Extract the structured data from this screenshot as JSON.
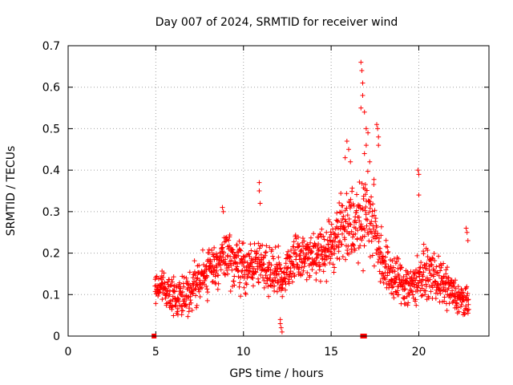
{
  "chart_data": {
    "type": "scatter",
    "title": "Day 007 of 2024, SRMTID for receiver wind",
    "xlabel": "GPS time / hours",
    "ylabel": "SRMTID / TECUs",
    "xlim": [
      0,
      24
    ],
    "ylim": [
      0,
      0.7
    ],
    "x_ticks": [
      "0",
      "5",
      "10",
      "15",
      "20"
    ],
    "x_tick_values": [
      0,
      5,
      10,
      15,
      20
    ],
    "y_ticks": [
      "0",
      "0.1",
      "0.2",
      "0.3",
      "0.4",
      "0.5",
      "0.6",
      "0.7"
    ],
    "y_tick_values": [
      0,
      0.1,
      0.2,
      0.3,
      0.4,
      0.5,
      0.6,
      0.7
    ],
    "grid": true,
    "marker": "plus",
    "series_color": "#ff0000",
    "trend": [
      [
        4.95,
        0.11
      ],
      [
        5.2,
        0.12
      ],
      [
        5.5,
        0.12
      ],
      [
        5.8,
        0.1
      ],
      [
        6.2,
        0.09
      ],
      [
        6.6,
        0.1
      ],
      [
        7.0,
        0.11
      ],
      [
        7.4,
        0.13
      ],
      [
        7.8,
        0.15
      ],
      [
        8.2,
        0.17
      ],
      [
        8.6,
        0.18
      ],
      [
        9.0,
        0.19
      ],
      [
        9.4,
        0.18
      ],
      [
        9.8,
        0.17
      ],
      [
        10.2,
        0.16
      ],
      [
        10.6,
        0.17
      ],
      [
        11.0,
        0.17
      ],
      [
        11.4,
        0.16
      ],
      [
        11.8,
        0.15
      ],
      [
        12.2,
        0.14
      ],
      [
        12.6,
        0.17
      ],
      [
        13.0,
        0.19
      ],
      [
        13.4,
        0.19
      ],
      [
        13.8,
        0.19
      ],
      [
        14.2,
        0.2
      ],
      [
        14.6,
        0.2
      ],
      [
        15.0,
        0.22
      ],
      [
        15.4,
        0.25
      ],
      [
        15.8,
        0.27
      ],
      [
        16.2,
        0.28
      ],
      [
        16.6,
        0.27
      ],
      [
        17.0,
        0.31
      ],
      [
        17.4,
        0.27
      ],
      [
        17.8,
        0.2
      ],
      [
        18.2,
        0.16
      ],
      [
        18.6,
        0.14
      ],
      [
        19.0,
        0.13
      ],
      [
        19.4,
        0.12
      ],
      [
        19.8,
        0.13
      ],
      [
        20.2,
        0.15
      ],
      [
        20.6,
        0.15
      ],
      [
        21.0,
        0.14
      ],
      [
        21.4,
        0.12
      ],
      [
        21.8,
        0.11
      ],
      [
        22.2,
        0.09
      ],
      [
        22.6,
        0.08
      ],
      [
        22.85,
        0.08
      ]
    ],
    "spread": [
      [
        4.95,
        0.03
      ],
      [
        6.0,
        0.04
      ],
      [
        8.0,
        0.05
      ],
      [
        9.0,
        0.06
      ],
      [
        10.5,
        0.05
      ],
      [
        12.0,
        0.05
      ],
      [
        13.5,
        0.05
      ],
      [
        15.0,
        0.06
      ],
      [
        16.0,
        0.08
      ],
      [
        17.0,
        0.1
      ],
      [
        18.0,
        0.06
      ],
      [
        19.5,
        0.05
      ],
      [
        21.0,
        0.05
      ],
      [
        22.85,
        0.03
      ]
    ],
    "outliers": [
      {
        "x": 8.8,
        "y": 0.31
      },
      {
        "x": 8.85,
        "y": 0.3
      },
      {
        "x": 10.9,
        "y": 0.37
      },
      {
        "x": 10.9,
        "y": 0.35
      },
      {
        "x": 10.95,
        "y": 0.32
      },
      {
        "x": 12.1,
        "y": 0.04
      },
      {
        "x": 12.15,
        "y": 0.02
      },
      {
        "x": 12.2,
        "y": 0.01
      },
      {
        "x": 12.1,
        "y": 0.03
      },
      {
        "x": 15.9,
        "y": 0.47
      },
      {
        "x": 16.0,
        "y": 0.45
      },
      {
        "x": 15.8,
        "y": 0.43
      },
      {
        "x": 16.1,
        "y": 0.42
      },
      {
        "x": 16.7,
        "y": 0.66
      },
      {
        "x": 16.75,
        "y": 0.64
      },
      {
        "x": 16.8,
        "y": 0.61
      },
      {
        "x": 16.8,
        "y": 0.58
      },
      {
        "x": 16.7,
        "y": 0.55
      },
      {
        "x": 16.9,
        "y": 0.54
      },
      {
        "x": 17.0,
        "y": 0.5
      },
      {
        "x": 17.1,
        "y": 0.49
      },
      {
        "x": 17.0,
        "y": 0.46
      },
      {
        "x": 16.9,
        "y": 0.44
      },
      {
        "x": 17.2,
        "y": 0.42
      },
      {
        "x": 17.6,
        "y": 0.51
      },
      {
        "x": 17.65,
        "y": 0.5
      },
      {
        "x": 17.7,
        "y": 0.48
      },
      {
        "x": 17.7,
        "y": 0.46
      },
      {
        "x": 19.95,
        "y": 0.4
      },
      {
        "x": 20.0,
        "y": 0.39
      },
      {
        "x": 20.0,
        "y": 0.34
      },
      {
        "x": 22.7,
        "y": 0.26
      },
      {
        "x": 22.75,
        "y": 0.25
      },
      {
        "x": 22.8,
        "y": 0.23
      }
    ],
    "square_markers": [
      {
        "x": 4.9,
        "y": 0.0
      },
      {
        "x": 16.8,
        "y": 0.0
      },
      {
        "x": 16.9,
        "y": 0.0
      }
    ]
  }
}
